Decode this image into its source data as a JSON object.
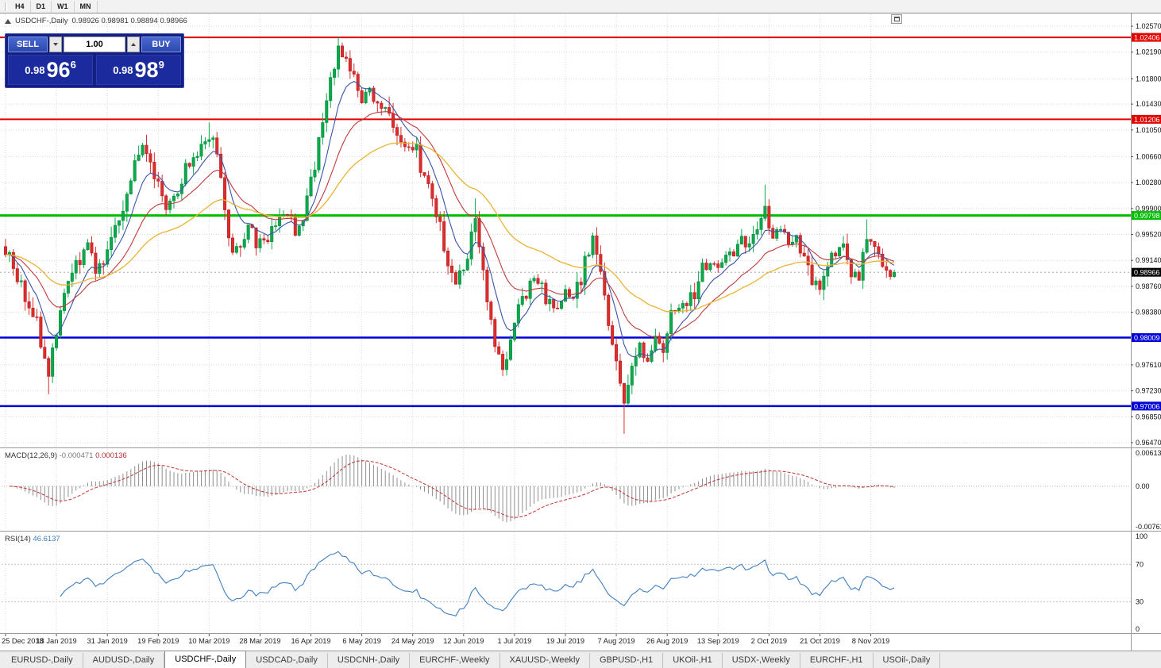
{
  "toolbar": {
    "timeframes": [
      "H4",
      "D1",
      "W1",
      "MN"
    ]
  },
  "chart": {
    "title_symbol": "USDCHF-,Daily",
    "title_ohlc": "0.98926 0.98981 0.98894 0.98966"
  },
  "trade_panel": {
    "sell_label": "SELL",
    "buy_label": "BUY",
    "lot_value": "1.00",
    "sell_price": {
      "prefix": "0.98",
      "big": "96",
      "sup": "6"
    },
    "buy_price": {
      "prefix": "0.98",
      "big": "98",
      "sup": "9"
    }
  },
  "price_axis": {
    "ticks": [
      "1.02570",
      "1.02190",
      "1.01800",
      "1.01430",
      "1.01050",
      "1.00660",
      "1.00280",
      "0.99900",
      "0.99520",
      "0.99140",
      "0.98760",
      "0.98380",
      "0.97610",
      "0.97230",
      "0.96850",
      "0.96470"
    ]
  },
  "hlines": [
    {
      "price": 1.02406,
      "label": "1.02406",
      "color": "#E00000",
      "width": 2
    },
    {
      "price": 1.01206,
      "label": "1.01206",
      "color": "#E00000",
      "width": 2
    },
    {
      "price": 0.99798,
      "label": "0.99798",
      "color": "#00BE00",
      "width": 3
    },
    {
      "price": 0.98009,
      "label": "0.98009",
      "color": "#0000D8",
      "width": 2.5
    },
    {
      "price": 0.97006,
      "label": "0.97006",
      "color": "#0000D8",
      "width": 2.5
    }
  ],
  "current_badge": {
    "price": 0.98966,
    "label": "0.98966",
    "bg": "#000000"
  },
  "dates": [
    "25 Dec 2018",
    "13 Jan 2019",
    "31 Jan 2019",
    "19 Feb 2019",
    "10 Mar 2019",
    "28 Mar 2019",
    "16 Apr 2019",
    "6 May 2019",
    "24 May 2019",
    "12 Jun 2019",
    "1 Jul 2019",
    "19 Jul 2019",
    "7 Aug 2019",
    "26 Aug 2019",
    "13 Sep 2019",
    "2 Oct 2019",
    "21 Oct 2019",
    "8 Nov 2019"
  ],
  "macd": {
    "label": "MACD(12,26,9)",
    "value_main": "-0.000471",
    "value_signal": "0.000136",
    "axis": [
      "0.00613",
      "0.00",
      "-0.00761"
    ]
  },
  "rsi": {
    "label": "RSI(14)",
    "value": "46.6137",
    "axis": [
      "100",
      "70",
      "30",
      "0"
    ],
    "levels": [
      70,
      30
    ]
  },
  "tabs": [
    {
      "label": "EURUSD-,Daily",
      "active": false
    },
    {
      "label": "AUDUSD-,Daily",
      "active": false
    },
    {
      "label": "USDCHF-,Daily",
      "active": true
    },
    {
      "label": "USDCAD-,Daily",
      "active": false
    },
    {
      "label": "USDCNH-,Daily",
      "active": false
    },
    {
      "label": "EURCHF-,Weekly",
      "active": false
    },
    {
      "label": "XAUUSD-,Weekly",
      "active": false
    },
    {
      "label": "GBPUSD-,H1",
      "active": false
    },
    {
      "label": "UKOil-,H1",
      "active": false
    },
    {
      "label": "USDX-,Weekly",
      "active": false
    },
    {
      "label": "EURCHF-,H1",
      "active": false
    },
    {
      "label": "USOil-,Daily",
      "active": false
    }
  ],
  "colors": {
    "grid": "#D8D8D8",
    "separator": "#9A9A9A",
    "axis_text": "#111111",
    "candle_up": "#0BA94C",
    "candle_up_dark": "#078B3C",
    "candle_down": "#DD2C2C",
    "candle_down_dark": "#B42020",
    "ma_fast": "#3A54A8",
    "ma_mid": "#C03A3A",
    "ma_slow": "#E9B433",
    "macd_hist": "#8F8F8F",
    "macd_signal": "#C23333",
    "rsi_line": "#3F7FC0",
    "hline_red": "#E00000",
    "hline_green": "#00BE00",
    "hline_blue": "#0000D8",
    "badge_black": "#000000",
    "panel_bg": "#13207F",
    "panel_button": "#4A68D2",
    "panel_button_border": "#7E96E3",
    "panel_price_bg": "#1B2B9E",
    "toolbar_bg": "#F2F2F2",
    "tab_bg": "#EDEDED",
    "tab_active_bg": "#FFFFFF"
  },
  "chart_data": {
    "type": "candlestick",
    "symbol": "USDCHF",
    "timeframe": "Daily",
    "title": "USDCHF-,Daily",
    "ohlc_display": {
      "open": "0.98926",
      "high": "0.98981",
      "low": "0.98894",
      "close": "0.98966"
    },
    "price_range": {
      "top": 1.0257,
      "bottom": 0.9647
    },
    "horizontal_levels": [
      1.02406,
      1.01206,
      0.99798,
      0.98009,
      0.97006
    ],
    "last_close": 0.98966,
    "candle_count": 228,
    "anchors": [
      [
        0,
        0.993
      ],
      [
        2,
        0.9905
      ],
      [
        4,
        0.988
      ],
      [
        6,
        0.9845
      ],
      [
        8,
        0.9815
      ],
      [
        10,
        0.977
      ],
      [
        11,
        0.9745
      ],
      [
        13,
        0.9815
      ],
      [
        15,
        0.986
      ],
      [
        17,
        0.9895
      ],
      [
        19,
        0.992
      ],
      [
        21,
        0.994
      ],
      [
        23,
        0.99
      ],
      [
        25,
        0.9915
      ],
      [
        27,
        0.9945
      ],
      [
        29,
        0.9975
      ],
      [
        31,
        1.002
      ],
      [
        33,
        1.006
      ],
      [
        35,
        1.008
      ],
      [
        37,
        1.006
      ],
      [
        39,
        1.002
      ],
      [
        41,
        0.9995
      ],
      [
        43,
        1.0005
      ],
      [
        45,
        1.0035
      ],
      [
        47,
        1.006
      ],
      [
        49,
        1.0075
      ],
      [
        51,
        1.009
      ],
      [
        53,
        1.01
      ],
      [
        55,
        1.004
      ],
      [
        56,
        0.999
      ],
      [
        58,
        0.993
      ],
      [
        60,
        0.994
      ],
      [
        62,
        0.9965
      ],
      [
        64,
        0.9945
      ],
      [
        66,
        0.994
      ],
      [
        68,
        0.9955
      ],
      [
        70,
        0.9975
      ],
      [
        72,
        0.999
      ],
      [
        74,
        0.995
      ],
      [
        76,
        0.9985
      ],
      [
        78,
        1.0035
      ],
      [
        80,
        1.009
      ],
      [
        82,
        1.015
      ],
      [
        84,
        1.0195
      ],
      [
        85,
        1.0215
      ],
      [
        87,
        1.02
      ],
      [
        89,
        1.0175
      ],
      [
        91,
        1.0145
      ],
      [
        93,
        1.017
      ],
      [
        95,
        1.0135
      ],
      [
        97,
        1.014
      ],
      [
        99,
        1.011
      ],
      [
        101,
        1.009
      ],
      [
        103,
        1.0085
      ],
      [
        105,
        1.007
      ],
      [
        107,
        1.004
      ],
      [
        109,
        1.001
      ],
      [
        111,
        0.996
      ],
      [
        113,
        0.9905
      ],
      [
        115,
        0.988
      ],
      [
        117,
        0.9905
      ],
      [
        119,
        0.996
      ],
      [
        120,
        0.9978
      ],
      [
        121,
        0.993
      ],
      [
        123,
        0.9855
      ],
      [
        125,
        0.979
      ],
      [
        127,
        0.9755
      ],
      [
        129,
        0.9805
      ],
      [
        131,
        0.9845
      ],
      [
        133,
        0.9865
      ],
      [
        135,
        0.9885
      ],
      [
        137,
        0.988
      ],
      [
        139,
        0.985
      ],
      [
        141,
        0.984
      ],
      [
        143,
        0.987
      ],
      [
        145,
        0.9855
      ],
      [
        147,
        0.9885
      ],
      [
        149,
        0.993
      ],
      [
        150,
        0.9945
      ],
      [
        152,
        0.9905
      ],
      [
        154,
        0.983
      ],
      [
        156,
        0.976
      ],
      [
        158,
        0.9705
      ],
      [
        160,
        0.9755
      ],
      [
        162,
        0.979
      ],
      [
        164,
        0.9765
      ],
      [
        166,
        0.9795
      ],
      [
        168,
        0.9785
      ],
      [
        170,
        0.983
      ],
      [
        172,
        0.9855
      ],
      [
        174,
        0.9845
      ],
      [
        176,
        0.987
      ],
      [
        178,
        0.99
      ],
      [
        180,
        0.9915
      ],
      [
        182,
        0.99
      ],
      [
        184,
        0.9925
      ],
      [
        186,
        0.9915
      ],
      [
        188,
        0.9945
      ],
      [
        190,
        0.9935
      ],
      [
        192,
        0.9965
      ],
      [
        194,
        0.9995
      ],
      [
        196,
        0.9945
      ],
      [
        198,
        0.9965
      ],
      [
        200,
        0.994
      ],
      [
        202,
        0.995
      ],
      [
        204,
        0.9915
      ],
      [
        206,
        0.989
      ],
      [
        208,
        0.9875
      ],
      [
        210,
        0.9905
      ],
      [
        212,
        0.993
      ],
      [
        214,
        0.994
      ],
      [
        216,
        0.9905
      ],
      [
        218,
        0.9885
      ],
      [
        220,
        0.996
      ],
      [
        222,
        0.9925
      ],
      [
        224,
        0.9908
      ],
      [
        226,
        0.9892
      ],
      [
        227,
        0.98966
      ]
    ],
    "spikes": [
      [
        11,
        "low",
        0.9718
      ],
      [
        36,
        "high",
        1.0098
      ],
      [
        52,
        "high",
        1.0116
      ],
      [
        85,
        "high",
        1.0242
      ],
      [
        120,
        "high",
        1.0005
      ],
      [
        158,
        "low",
        0.966
      ],
      [
        194,
        "high",
        1.0025
      ],
      [
        220,
        "high",
        0.9974
      ]
    ],
    "indicators": [
      {
        "name": "MACD",
        "params": "12,26,9",
        "values": [
          "-0.000471",
          "0.000136"
        ]
      },
      {
        "name": "RSI",
        "params": "14",
        "values": [
          "46.6137"
        ]
      }
    ]
  }
}
